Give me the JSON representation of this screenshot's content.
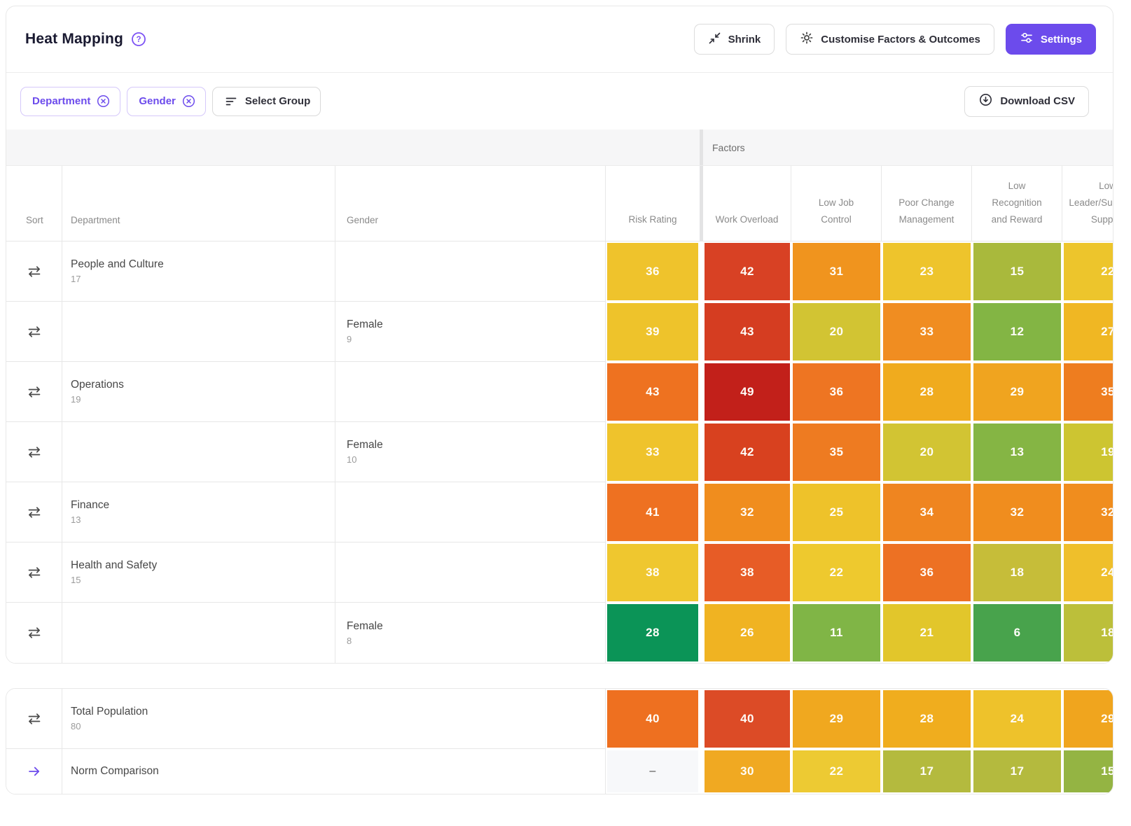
{
  "accent": "#6C4BEC",
  "header": {
    "title": "Heat Mapping",
    "shrink_label": "Shrink",
    "customise_label": "Customise Factors & Outcomes",
    "settings_label": "Settings"
  },
  "filters": {
    "chips": [
      {
        "label": "Department"
      },
      {
        "label": "Gender"
      }
    ],
    "select_group_label": "Select Group",
    "download_label": "Download CSV"
  },
  "table": {
    "group_header": "Factors",
    "columns": {
      "sort": "Sort",
      "department": "Department",
      "gender": "Gender",
      "risk": "Risk Rating",
      "factor_columns": [
        [
          "Work Overload"
        ],
        [
          "Low Job",
          "Control"
        ],
        [
          "Poor Change",
          "Management"
        ],
        [
          "Low",
          "Recognition",
          "and Reward"
        ],
        [
          "Low",
          "Leader/Supervisor",
          "Support"
        ]
      ]
    },
    "rows": [
      {
        "department": "People and Culture",
        "count": "17",
        "gender": "",
        "cells": [
          {
            "v": "36",
            "c": "#efc32c"
          },
          {
            "v": "42",
            "c": "#d84124"
          },
          {
            "v": "31",
            "c": "#f0941e"
          },
          {
            "v": "23",
            "c": "#eec42c"
          },
          {
            "v": "15",
            "c": "#a9b93c"
          },
          {
            "v": "22",
            "c": "#edc52c"
          }
        ]
      },
      {
        "department": "",
        "count": "9",
        "gender": "Female",
        "cells": [
          {
            "v": "39",
            "c": "#eec32b"
          },
          {
            "v": "43",
            "c": "#d53d21"
          },
          {
            "v": "20",
            "c": "#d2c433"
          },
          {
            "v": "33",
            "c": "#f08d21"
          },
          {
            "v": "12",
            "c": "#83b544"
          },
          {
            "v": "27",
            "c": "#f0b723"
          }
        ]
      },
      {
        "department": "Operations",
        "count": "19",
        "gender": "",
        "cells": [
          {
            "v": "43",
            "c": "#ee7220"
          },
          {
            "v": "49",
            "c": "#c2201a"
          },
          {
            "v": "36",
            "c": "#ee7522"
          },
          {
            "v": "28",
            "c": "#f0ab1e"
          },
          {
            "v": "29",
            "c": "#f0a41f"
          },
          {
            "v": "35",
            "c": "#ee7d1f"
          }
        ]
      },
      {
        "department": "",
        "count": "10",
        "gender": "Female",
        "cells": [
          {
            "v": "33",
            "c": "#efc32c"
          },
          {
            "v": "42",
            "c": "#d8411f"
          },
          {
            "v": "35",
            "c": "#ee7b21"
          },
          {
            "v": "20",
            "c": "#d2c433"
          },
          {
            "v": "13",
            "c": "#85b544"
          },
          {
            "v": "19",
            "c": "#cdc531"
          }
        ]
      },
      {
        "department": "Finance",
        "count": "13",
        "gender": "",
        "cells": [
          {
            "v": "41",
            "c": "#ee7121"
          },
          {
            "v": "32",
            "c": "#f08d1e"
          },
          {
            "v": "25",
            "c": "#eec22a"
          },
          {
            "v": "34",
            "c": "#ef8520"
          },
          {
            "v": "32",
            "c": "#f08d1e"
          },
          {
            "v": "32",
            "c": "#f08d1e"
          }
        ]
      },
      {
        "department": "Health and Safety",
        "count": "15",
        "gender": "",
        "cells": [
          {
            "v": "38",
            "c": "#efc72f"
          },
          {
            "v": "38",
            "c": "#e75c26"
          },
          {
            "v": "22",
            "c": "#eec92e"
          },
          {
            "v": "36",
            "c": "#ed7123"
          },
          {
            "v": "18",
            "c": "#c6bd39"
          },
          {
            "v": "24",
            "c": "#efbf2b"
          }
        ]
      },
      {
        "department": "",
        "count": "8",
        "gender": "Female",
        "cells": [
          {
            "v": "28",
            "c": "#0b9457"
          },
          {
            "v": "26",
            "c": "#f0b322"
          },
          {
            "v": "11",
            "c": "#80b546"
          },
          {
            "v": "21",
            "c": "#e2c62b"
          },
          {
            "v": "6",
            "c": "#48a34c"
          },
          {
            "v": "18",
            "c": "#bcbf3a"
          }
        ]
      }
    ],
    "footer_rows": [
      {
        "label": "Total Population",
        "count": "80",
        "icon": "swap",
        "cells": [
          {
            "v": "40",
            "c": "#ee7020"
          },
          {
            "v": "40",
            "c": "#dc4b26"
          },
          {
            "v": "29",
            "c": "#f0a81f"
          },
          {
            "v": "28",
            "c": "#f0ad1e"
          },
          {
            "v": "24",
            "c": "#eec22b"
          },
          {
            "v": "29",
            "c": "#f0a51e"
          }
        ]
      },
      {
        "label": "Norm Comparison",
        "count": "",
        "icon": "arrow",
        "cells": [
          {
            "v": "–",
            "c": "#f7f8fa",
            "muted": true
          },
          {
            "v": "30",
            "c": "#f0a922"
          },
          {
            "v": "22",
            "c": "#edca33"
          },
          {
            "v": "17",
            "c": "#b4ba3e"
          },
          {
            "v": "17",
            "c": "#b4ba3e"
          },
          {
            "v": "15",
            "c": "#94b443"
          }
        ]
      }
    ]
  }
}
